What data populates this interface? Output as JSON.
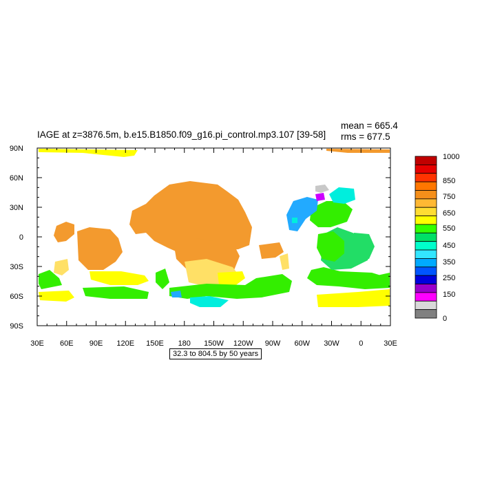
{
  "title": "IAGE at z=3876.5m, b.e15.B1850.f09_g16.pi_control.mp3.107 [39-58]",
  "stats": {
    "mean": "mean = 665.4",
    "rms": "rms = 677.5"
  },
  "range_label": "32.3 to 804.5 by 50 years",
  "map": {
    "x_tick_labels": [
      "30E",
      "60E",
      "90E",
      "120E",
      "150E",
      "180",
      "150W",
      "120W",
      "90W",
      "60W",
      "30W",
      "0",
      "30E"
    ],
    "y_tick_labels": [
      "90N",
      "60N",
      "30N",
      "0",
      "30S",
      "60S",
      "90S"
    ]
  },
  "colorbar": {
    "labels": [
      "1000",
      "850",
      "750",
      "650",
      "550",
      "450",
      "350",
      "250",
      "150",
      "0"
    ],
    "colors": [
      "#c00000",
      "#e60000",
      "#ff3300",
      "#ff7700",
      "#f58f1a",
      "#ffb833",
      "#ffdd33",
      "#ffff00",
      "#33ff00",
      "#00e066",
      "#00ffcc",
      "#33e6ff",
      "#00aaff",
      "#0055ff",
      "#0000dd",
      "#9900cc",
      "#ff00ff",
      "#d9d9d9",
      "#808080"
    ]
  },
  "colors": {
    "orange": "#f39a2e",
    "yellow": "#ffff00",
    "lightyellow": "#ffe066",
    "green": "#33ee00",
    "greenblue": "#22dd66",
    "cyan": "#00eedd",
    "skyblue": "#22aaff",
    "magenta": "#cc00ff",
    "gray": "#c8c8c8"
  }
}
